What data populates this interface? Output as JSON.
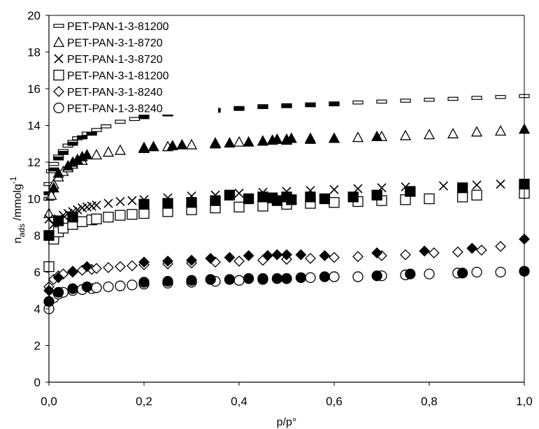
{
  "chart_data": {
    "type": "scatter",
    "xlabel": "p/p°",
    "ylabel": {
      "main": "n",
      "sub": "ads",
      "rest": " /mmolg",
      "sup": "-1"
    },
    "xlim": [
      0,
      1
    ],
    "ylim": [
      0,
      20
    ],
    "x_ticks": [
      "0,0",
      "0,2",
      "0,4",
      "0,6",
      "0,8",
      "1,0"
    ],
    "y_ticks": [
      "0",
      "2",
      "4",
      "6",
      "8",
      "10",
      "12",
      "14",
      "16",
      "18",
      "20"
    ],
    "grid": false,
    "legend_position": "top-left",
    "series": [
      {
        "name": "PET-PAN-1-3-81200",
        "marker": "dash",
        "x": [
          0.0,
          0.0,
          0.005,
          0.01,
          0.02,
          0.03,
          0.04,
          0.05,
          0.06,
          0.08,
          0.1,
          0.12,
          0.15,
          0.18,
          0.2,
          0.25,
          0.3,
          0.35,
          0.4,
          0.45,
          0.5,
          0.55,
          0.6,
          0.65,
          0.7,
          0.75,
          0.8,
          0.85,
          0.9,
          0.95,
          1.0
        ],
        "y": [
          10.0,
          10.8,
          11.5,
          11.9,
          12.3,
          12.6,
          12.9,
          13.1,
          13.3,
          13.55,
          13.75,
          13.95,
          14.2,
          14.35,
          14.5,
          14.65,
          14.75,
          14.85,
          14.95,
          15.05,
          15.1,
          15.15,
          15.2,
          15.25,
          15.3,
          15.35,
          15.4,
          15.45,
          15.5,
          15.55,
          15.6
        ],
        "filled_x": [
          0.0,
          0.01,
          0.02,
          0.03,
          0.05,
          0.07,
          0.09,
          0.2,
          0.25,
          0.3,
          0.35,
          0.4,
          0.45,
          0.5,
          0.55,
          0.6
        ],
        "filled_y": [
          10.3,
          11.6,
          12.2,
          12.5,
          13.0,
          13.35,
          13.55,
          14.45,
          14.6,
          14.7,
          14.8,
          14.9,
          15.0,
          15.05,
          15.1,
          15.15
        ]
      },
      {
        "name": "PET-PAN-3-1-8720",
        "marker": "triangle",
        "x": [
          0.0,
          0.005,
          0.01,
          0.02,
          0.03,
          0.04,
          0.05,
          0.07,
          0.1,
          0.125,
          0.15,
          0.2,
          0.25,
          0.3,
          0.35,
          0.4,
          0.45,
          0.5,
          0.55,
          0.6,
          0.65,
          0.7,
          0.75,
          0.8,
          0.85,
          0.9,
          0.95
        ],
        "y": [
          9.2,
          10.2,
          10.8,
          11.2,
          11.5,
          11.7,
          11.9,
          12.1,
          12.4,
          12.55,
          12.65,
          12.75,
          12.85,
          12.95,
          13.05,
          13.1,
          13.15,
          13.2,
          13.25,
          13.3,
          13.35,
          13.4,
          13.45,
          13.5,
          13.55,
          13.65,
          13.7
        ],
        "filled_x": [
          0.01,
          0.02,
          0.04,
          0.05,
          0.06,
          0.07,
          0.08,
          0.2,
          0.22,
          0.26,
          0.28,
          0.35,
          0.38,
          0.42,
          0.45,
          0.47,
          0.48,
          0.5,
          0.51,
          0.55,
          0.6,
          0.69,
          1.0
        ],
        "filled_y": [
          10.6,
          11.4,
          11.8,
          12.0,
          12.15,
          12.3,
          12.4,
          12.8,
          12.85,
          12.9,
          12.95,
          13.0,
          13.05,
          13.1,
          13.15,
          13.2,
          13.25,
          13.25,
          13.3,
          13.3,
          13.3,
          13.4,
          13.8
        ]
      },
      {
        "name": "PET-PAN-1-3-8720",
        "marker": "cross",
        "x": [
          0.0,
          0.01,
          0.02,
          0.03,
          0.04,
          0.05,
          0.06,
          0.07,
          0.08,
          0.09,
          0.1,
          0.125,
          0.15,
          0.175,
          0.2,
          0.25,
          0.3,
          0.35,
          0.4,
          0.45,
          0.5,
          0.55,
          0.6,
          0.65,
          0.7,
          0.75,
          0.83,
          0.9,
          0.95
        ],
        "y": [
          8.9,
          8.6,
          8.9,
          9.1,
          9.2,
          9.3,
          9.4,
          9.5,
          9.55,
          9.6,
          9.65,
          9.75,
          9.85,
          9.9,
          9.95,
          10.05,
          10.15,
          10.2,
          10.3,
          10.35,
          10.4,
          10.45,
          10.5,
          10.55,
          10.6,
          10.65,
          10.7,
          10.75,
          10.8
        ]
      },
      {
        "name": "PET-PAN-3-1-81200",
        "marker": "square",
        "x": [
          0.0,
          0.01,
          0.02,
          0.03,
          0.05,
          0.07,
          0.09,
          0.1,
          0.125,
          0.15,
          0.175,
          0.2,
          0.25,
          0.3,
          0.35,
          0.4,
          0.45,
          0.5,
          0.55,
          0.6,
          0.65,
          0.7,
          0.75,
          0.8,
          0.87,
          0.9,
          1.0
        ],
        "y": [
          6.3,
          7.8,
          8.2,
          8.4,
          8.6,
          8.75,
          8.85,
          8.9,
          9.0,
          9.1,
          9.15,
          9.2,
          9.3,
          9.4,
          9.5,
          9.55,
          9.6,
          9.7,
          9.75,
          9.8,
          9.85,
          9.9,
          9.95,
          10.0,
          10.1,
          10.2,
          10.3
        ],
        "filled_x": [
          0.0,
          0.02,
          0.05,
          0.2,
          0.25,
          0.3,
          0.35,
          0.38,
          0.42,
          0.45,
          0.47,
          0.48,
          0.5,
          0.51,
          0.55,
          0.58,
          0.64,
          0.69,
          0.76,
          0.87,
          1.0
        ],
        "filled_y": [
          8.0,
          8.8,
          9.0,
          9.7,
          9.75,
          9.8,
          9.9,
          10.2,
          10.0,
          10.1,
          10.05,
          9.9,
          10.1,
          9.95,
          10.1,
          10.0,
          10.1,
          10.2,
          10.4,
          10.6,
          10.8
        ]
      },
      {
        "name": "PET-PAN-3-1-8240",
        "marker": "diamond",
        "x": [
          0.0,
          0.01,
          0.02,
          0.03,
          0.05,
          0.07,
          0.09,
          0.1,
          0.125,
          0.15,
          0.175,
          0.2,
          0.25,
          0.3,
          0.35,
          0.4,
          0.45,
          0.5,
          0.55,
          0.6,
          0.65,
          0.7,
          0.75,
          0.81,
          0.86,
          0.91,
          0.95
        ],
        "y": [
          5.2,
          5.6,
          5.8,
          5.9,
          6.05,
          6.1,
          6.15,
          6.2,
          6.25,
          6.3,
          6.35,
          6.4,
          6.45,
          6.5,
          6.55,
          6.6,
          6.65,
          6.7,
          6.75,
          6.8,
          6.85,
          6.9,
          6.95,
          7.05,
          7.1,
          7.2,
          7.4
        ],
        "filled_x": [
          0.0,
          0.02,
          0.05,
          0.08,
          0.2,
          0.25,
          0.3,
          0.34,
          0.38,
          0.42,
          0.46,
          0.48,
          0.5,
          0.53,
          0.58,
          0.69,
          0.79,
          0.89,
          1.0
        ],
        "filled_y": [
          5.0,
          5.7,
          6.0,
          6.3,
          6.55,
          6.6,
          6.65,
          6.75,
          6.8,
          6.9,
          6.9,
          6.95,
          6.95,
          6.95,
          6.9,
          7.05,
          7.15,
          7.3,
          7.8
        ]
      },
      {
        "name": "PET-PAN-1-3-8240",
        "marker": "circle",
        "x": [
          0.0,
          0.01,
          0.02,
          0.03,
          0.05,
          0.07,
          0.09,
          0.1,
          0.125,
          0.15,
          0.175,
          0.2,
          0.25,
          0.3,
          0.35,
          0.4,
          0.45,
          0.5,
          0.55,
          0.6,
          0.65,
          0.7,
          0.75,
          0.8,
          0.86,
          0.9,
          0.95
        ],
        "y": [
          4.0,
          4.6,
          4.8,
          4.9,
          5.0,
          5.05,
          5.1,
          5.15,
          5.2,
          5.25,
          5.3,
          5.35,
          5.4,
          5.45,
          5.5,
          5.55,
          5.6,
          5.65,
          5.7,
          5.75,
          5.75,
          5.8,
          5.85,
          5.9,
          5.95,
          6.0,
          6.0
        ],
        "filled_x": [
          0.0,
          0.02,
          0.05,
          0.08,
          0.2,
          0.25,
          0.3,
          0.34,
          0.38,
          0.42,
          0.45,
          0.48,
          0.5,
          0.53,
          0.58,
          0.69,
          0.76,
          0.87,
          1.0
        ],
        "filled_y": [
          4.4,
          4.9,
          5.1,
          5.2,
          5.45,
          5.5,
          5.55,
          5.6,
          5.6,
          5.65,
          5.65,
          5.65,
          5.65,
          5.7,
          5.75,
          5.8,
          5.9,
          5.95,
          6.05
        ]
      }
    ]
  }
}
